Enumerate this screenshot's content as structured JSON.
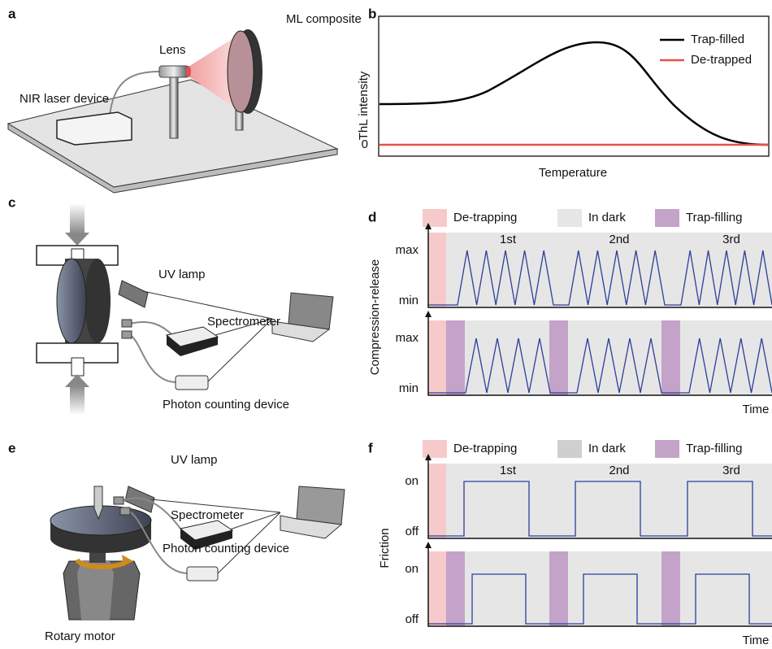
{
  "panels": {
    "a": {
      "label": "a",
      "composite": "ML composite",
      "lens": "Lens",
      "laser": "NIR laser device"
    },
    "b": {
      "label": "b",
      "y_label": "ThL intensity",
      "x_label": "Temperature",
      "y_tick": "0",
      "legend": [
        "Trap-filled",
        "De-trapped"
      ]
    },
    "c": {
      "label": "c",
      "lamp": "UV lamp",
      "spectrometer": "Spectrometer",
      "counter": "Photon counting device"
    },
    "d": {
      "label": "d",
      "legend": [
        "De-trapping",
        "In dark",
        "Trap-filling"
      ],
      "y_label": "Compression-release",
      "cycles": [
        "1st",
        "2nd",
        "3rd"
      ],
      "high": "max",
      "low": "min",
      "x_label": "Time"
    },
    "e": {
      "label": "e",
      "lamp": "UV lamp",
      "spectrometer": "Spectrometer",
      "counter": "Photon counting device",
      "motor": "Rotary motor"
    },
    "f": {
      "label": "f",
      "legend": [
        "De-trapping",
        "In dark",
        "Trap-filling"
      ],
      "y_label": "Friction",
      "cycles": [
        "1st",
        "2nd",
        "3rd"
      ],
      "high": "on",
      "low": "off",
      "x_label": "Time"
    }
  }
}
